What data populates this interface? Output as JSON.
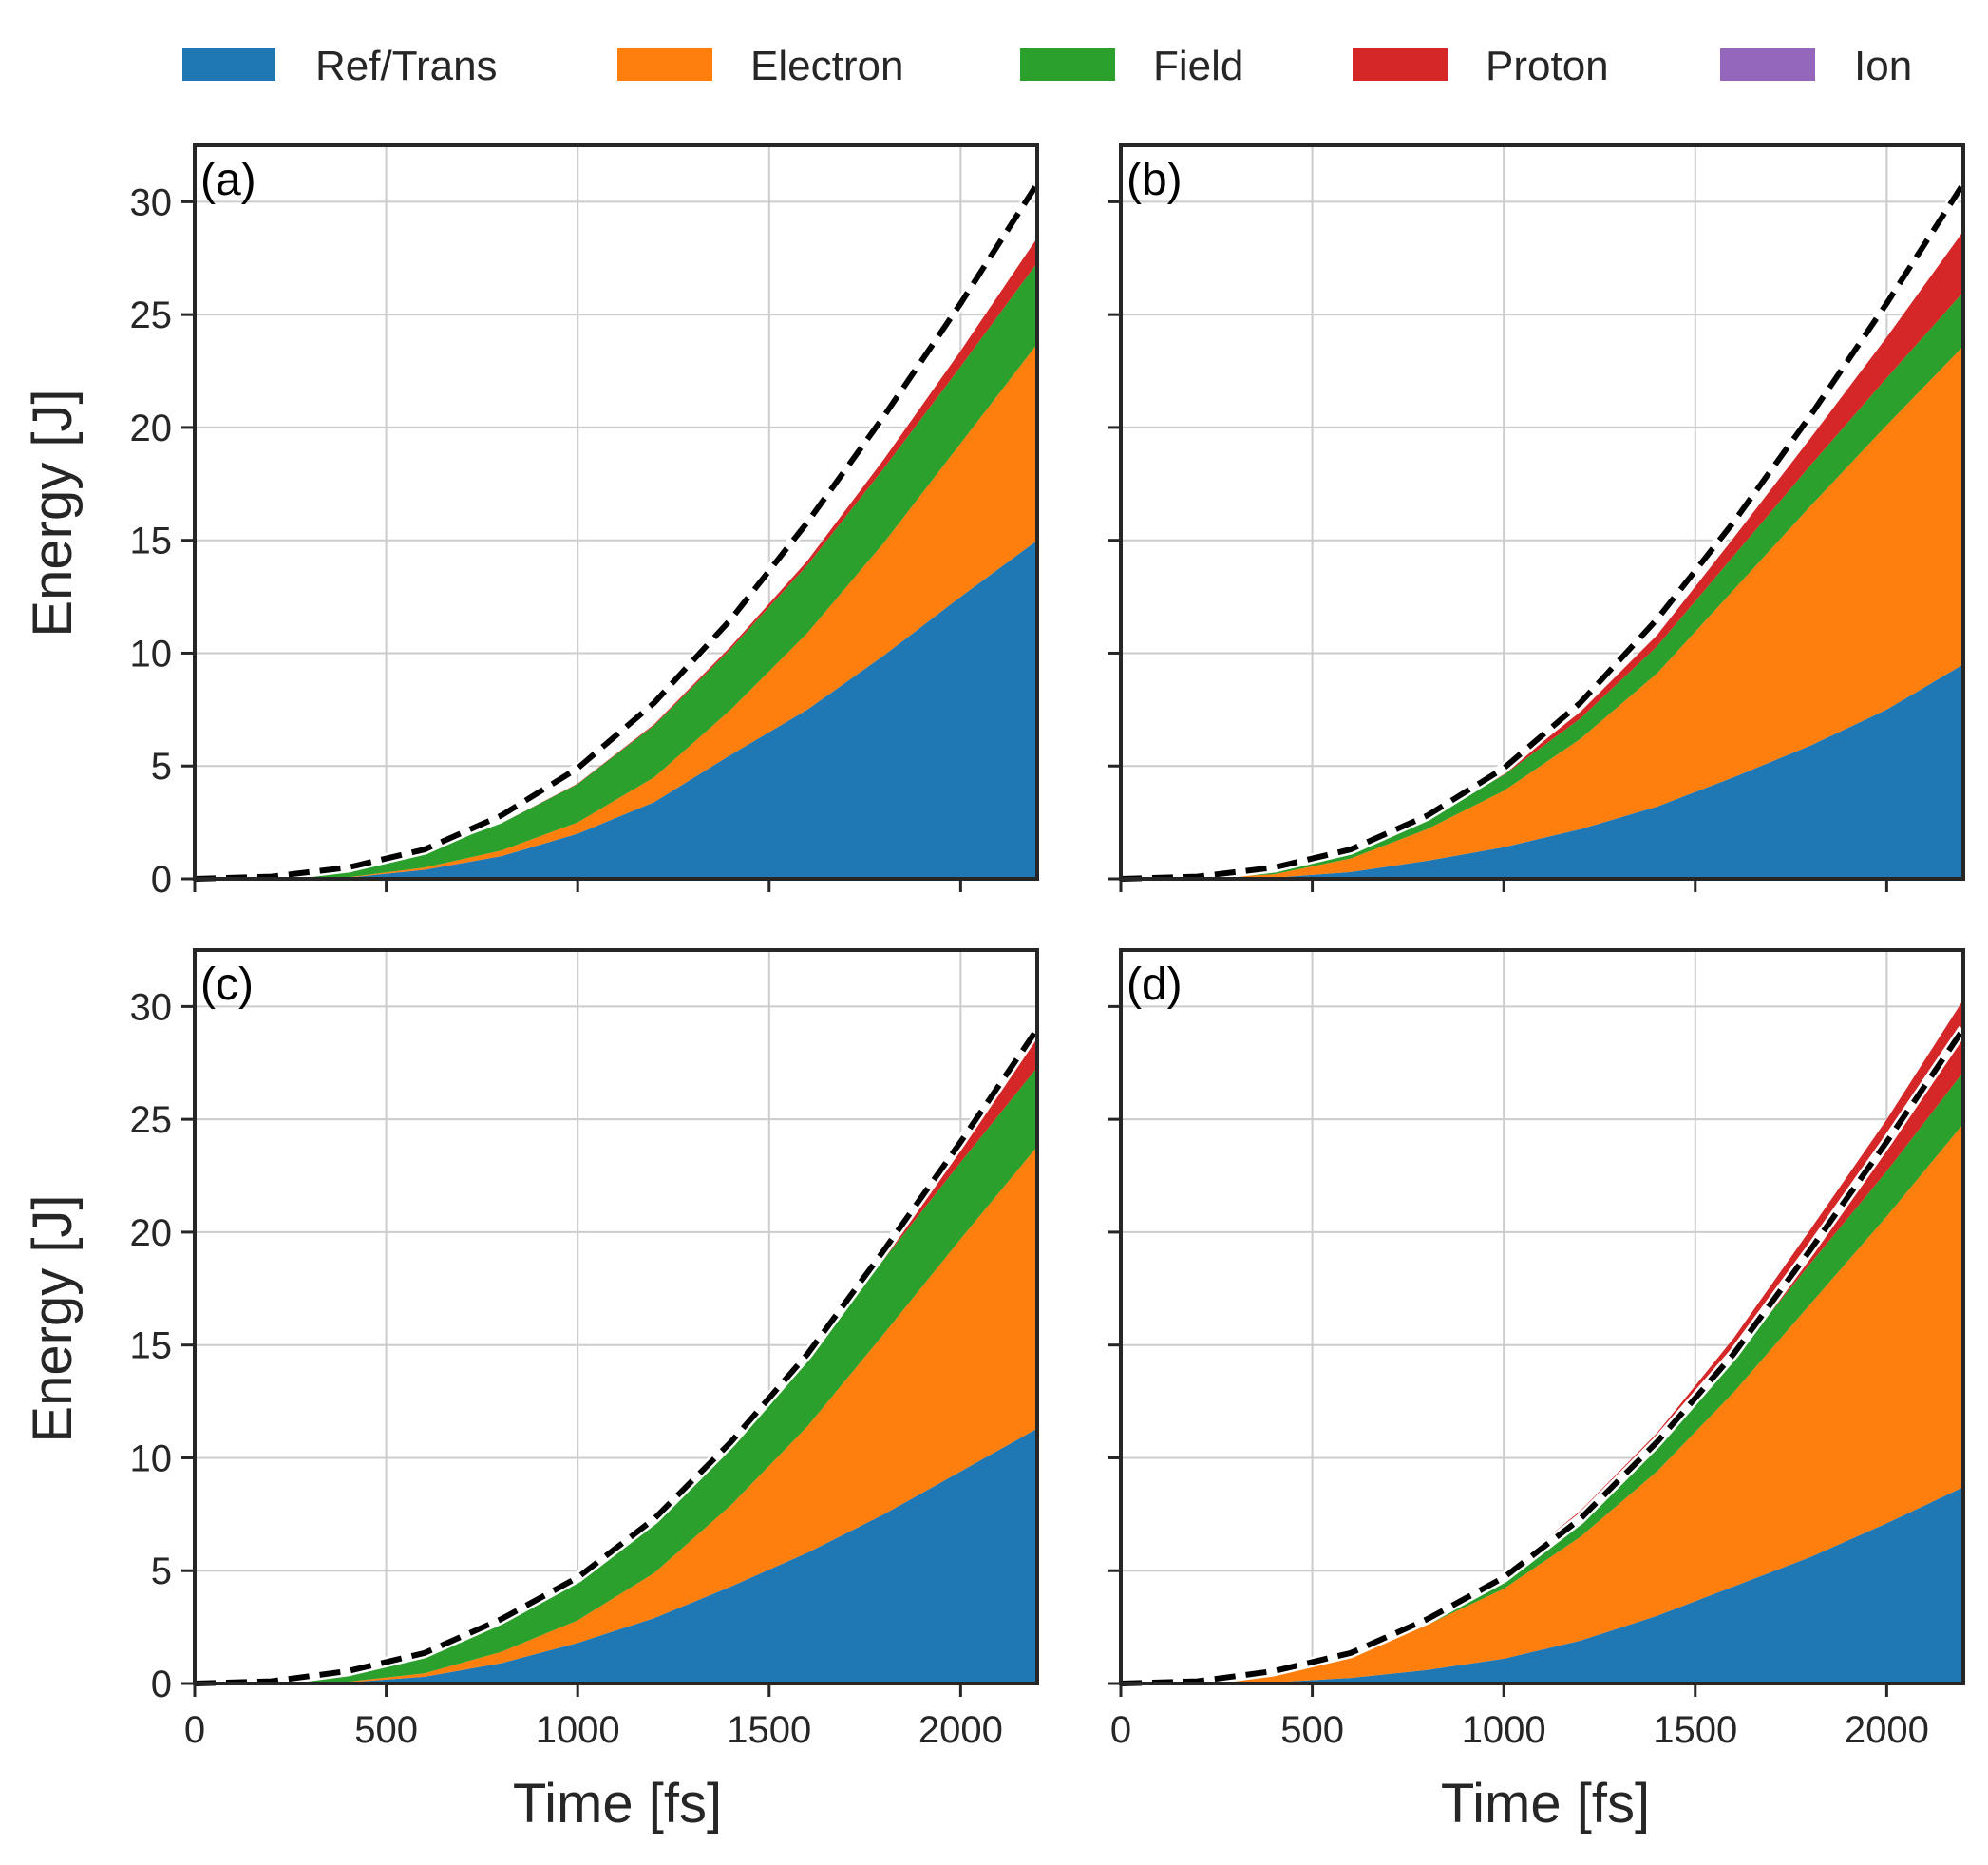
{
  "colors": {
    "ref_trans": "#1f77b4",
    "electron": "#ff7f0e",
    "field": "#2ca02c",
    "proton": "#d62728",
    "ion": "#9467bd",
    "reference_line": "#000000",
    "grid": "#cccccc",
    "axes": "#262626"
  },
  "legend": {
    "placement": "top",
    "items": [
      {
        "key": "ref_trans",
        "label": "Ref/Trans"
      },
      {
        "key": "electron",
        "label": "Electron"
      },
      {
        "key": "field",
        "label": "Field"
      },
      {
        "key": "proton",
        "label": "Proton"
      },
      {
        "key": "ion",
        "label": "Ion"
      }
    ]
  },
  "axes": {
    "xlabel": "Time [fs]",
    "ylabel": "Energy [J]",
    "xlim": [
      0,
      2200
    ],
    "ylim": [
      0,
      32.5
    ],
    "xticks": [
      0,
      500,
      1000,
      1500,
      2000
    ],
    "yticks": [
      0,
      5,
      10,
      15,
      20,
      25,
      30
    ],
    "grid": true
  },
  "chart_data": [
    {
      "panel": "(a)",
      "type": "area",
      "stacked": true,
      "x": [
        0,
        200,
        400,
        600,
        800,
        1000,
        1200,
        1400,
        1600,
        1800,
        2000,
        2200
      ],
      "series": [
        {
          "name": "Ref/Trans",
          "values": [
            0,
            0.0,
            0.05,
            0.4,
            1.0,
            2.0,
            3.4,
            5.5,
            7.5,
            9.9,
            12.5,
            15.0
          ]
        },
        {
          "name": "Electron",
          "values": [
            0,
            0.0,
            0.02,
            0.1,
            0.25,
            0.5,
            1.1,
            2.0,
            3.4,
            5.0,
            6.8,
            8.7
          ]
        },
        {
          "name": "Field",
          "values": [
            0,
            0.05,
            0.3,
            0.7,
            1.2,
            1.7,
            2.3,
            2.7,
            3.0,
            3.3,
            3.4,
            3.6
          ]
        },
        {
          "name": "Proton",
          "values": [
            0,
            0,
            0,
            0,
            0,
            0.02,
            0.05,
            0.1,
            0.2,
            0.4,
            0.7,
            1.1
          ]
        },
        {
          "name": "Ion",
          "values": [
            0,
            0,
            0,
            0,
            0,
            0,
            0,
            0,
            0,
            0,
            0,
            0
          ]
        }
      ],
      "reference": {
        "style": "dashed",
        "values": [
          0,
          0.1,
          0.5,
          1.3,
          2.8,
          4.9,
          7.8,
          11.5,
          15.8,
          20.5,
          25.5,
          30.8
        ]
      }
    },
    {
      "panel": "(b)",
      "type": "area",
      "stacked": true,
      "x": [
        0,
        200,
        400,
        600,
        800,
        1000,
        1200,
        1400,
        1600,
        1800,
        2000,
        2200
      ],
      "series": [
        {
          "name": "Ref/Trans",
          "values": [
            0,
            0.0,
            0.05,
            0.3,
            0.8,
            1.4,
            2.2,
            3.2,
            4.5,
            5.9,
            7.5,
            9.5
          ]
        },
        {
          "name": "Electron",
          "values": [
            0,
            0.02,
            0.15,
            0.6,
            1.4,
            2.5,
            4.0,
            5.9,
            8.3,
            10.6,
            12.6,
            14.1
          ]
        },
        {
          "name": "Field",
          "values": [
            0,
            0.02,
            0.1,
            0.3,
            0.5,
            0.7,
            0.9,
            1.2,
            1.5,
            1.8,
            2.1,
            2.4
          ]
        },
        {
          "name": "Proton",
          "values": [
            0,
            0,
            0,
            0.02,
            0.05,
            0.1,
            0.3,
            0.5,
            0.8,
            1.2,
            1.8,
            2.7
          ]
        },
        {
          "name": "Ion",
          "values": [
            0,
            0,
            0,
            0,
            0,
            0,
            0,
            0,
            0,
            0,
            0,
            0
          ]
        }
      ],
      "reference": {
        "style": "dashed",
        "values": [
          0,
          0.1,
          0.5,
          1.3,
          2.8,
          4.9,
          7.8,
          11.5,
          15.8,
          20.5,
          25.5,
          30.8
        ]
      }
    },
    {
      "panel": "(c)",
      "type": "area",
      "stacked": true,
      "x": [
        0,
        200,
        400,
        600,
        800,
        1000,
        1200,
        1400,
        1600,
        1800,
        2000,
        2200
      ],
      "series": [
        {
          "name": "Ref/Trans",
          "values": [
            0,
            0.0,
            0.05,
            0.3,
            0.9,
            1.8,
            2.9,
            4.3,
            5.8,
            7.5,
            9.4,
            11.3
          ]
        },
        {
          "name": "Electron",
          "values": [
            0,
            0.0,
            0.03,
            0.15,
            0.5,
            1.0,
            2.0,
            3.6,
            5.6,
            8.0,
            10.3,
            12.5
          ]
        },
        {
          "name": "Field",
          "values": [
            0,
            0.05,
            0.35,
            0.85,
            1.5,
            1.9,
            2.4,
            2.8,
            3.0,
            3.3,
            3.4,
            3.5
          ]
        },
        {
          "name": "Proton",
          "values": [
            0,
            0,
            0,
            0,
            0,
            0.03,
            0.1,
            0.2,
            0.4,
            0.7,
            1.1,
            1.7
          ]
        },
        {
          "name": "Ion",
          "values": [
            0,
            0,
            0,
            0,
            0,
            0,
            0,
            0,
            0,
            0,
            0,
            0
          ]
        }
      ],
      "reference": {
        "style": "dashed",
        "values": [
          0,
          0.1,
          0.55,
          1.35,
          2.85,
          4.7,
          7.3,
          10.7,
          14.6,
          19.2,
          24.0,
          29.0
        ]
      }
    },
    {
      "panel": "(d)",
      "type": "area",
      "stacked": true,
      "x": [
        0,
        200,
        400,
        600,
        800,
        1000,
        1200,
        1400,
        1600,
        1800,
        2000,
        2200
      ],
      "series": [
        {
          "name": "Ref/Trans",
          "values": [
            0,
            0.0,
            0.05,
            0.25,
            0.6,
            1.1,
            1.9,
            3.0,
            4.3,
            5.6,
            7.1,
            8.7
          ]
        },
        {
          "name": "Electron",
          "values": [
            0,
            0.03,
            0.35,
            1.0,
            2.0,
            3.1,
            4.6,
            6.4,
            8.6,
            11.2,
            13.6,
            16.1
          ]
        },
        {
          "name": "Field",
          "values": [
            0,
            0.02,
            0.1,
            0.25,
            0.45,
            0.6,
            0.9,
            1.2,
            1.5,
            1.8,
            2.0,
            2.3
          ]
        },
        {
          "name": "Proton",
          "values": [
            0,
            0,
            0,
            0,
            0.02,
            0.1,
            0.25,
            0.5,
            0.9,
            1.5,
            2.3,
            3.2
          ]
        },
        {
          "name": "Ion",
          "values": [
            0,
            0,
            0,
            0,
            0,
            0,
            0,
            0,
            0,
            0,
            0,
            0
          ]
        }
      ],
      "reference": {
        "style": "dashed",
        "values": [
          0,
          0.1,
          0.55,
          1.35,
          2.85,
          4.7,
          7.3,
          10.7,
          14.6,
          19.2,
          24.0,
          29.0
        ]
      }
    }
  ]
}
